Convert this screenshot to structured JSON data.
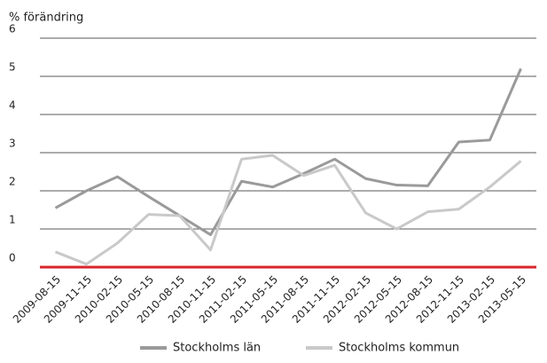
{
  "chart_data": {
    "type": "line",
    "y_label": "% förändring",
    "categories": [
      "2009-08-15",
      "2009-11-15",
      "2010-02-15",
      "2010-05-15",
      "2010-08-15",
      "2010-11-15",
      "2011-02-15",
      "2011-05-15",
      "2011-08-15",
      "2011-11-15",
      "2012-02-15",
      "2012-05-15",
      "2012-08-15",
      "2012-11-15",
      "2013-02-15",
      "2013-05-15"
    ],
    "series": [
      {
        "name": "Stockholms län",
        "color": "#9a9a9a",
        "values": [
          1.55,
          2.0,
          2.37,
          1.85,
          1.35,
          0.85,
          2.25,
          2.1,
          2.45,
          2.83,
          2.32,
          2.15,
          2.13,
          3.28,
          3.33,
          5.2
        ]
      },
      {
        "name": "Stockholms kommun",
        "color": "#c9c9c9",
        "values": [
          0.4,
          0.08,
          0.63,
          1.38,
          1.35,
          0.45,
          2.83,
          2.93,
          2.4,
          2.67,
          1.42,
          1.0,
          1.45,
          1.52,
          2.1,
          2.78
        ]
      }
    ],
    "ylim": [
      0,
      6
    ],
    "yticks": [
      0,
      1,
      2,
      3,
      4,
      5,
      6
    ],
    "grid": true,
    "grid_color": "#222",
    "zero_line_color": "#d9262c",
    "legend": "bottom"
  }
}
